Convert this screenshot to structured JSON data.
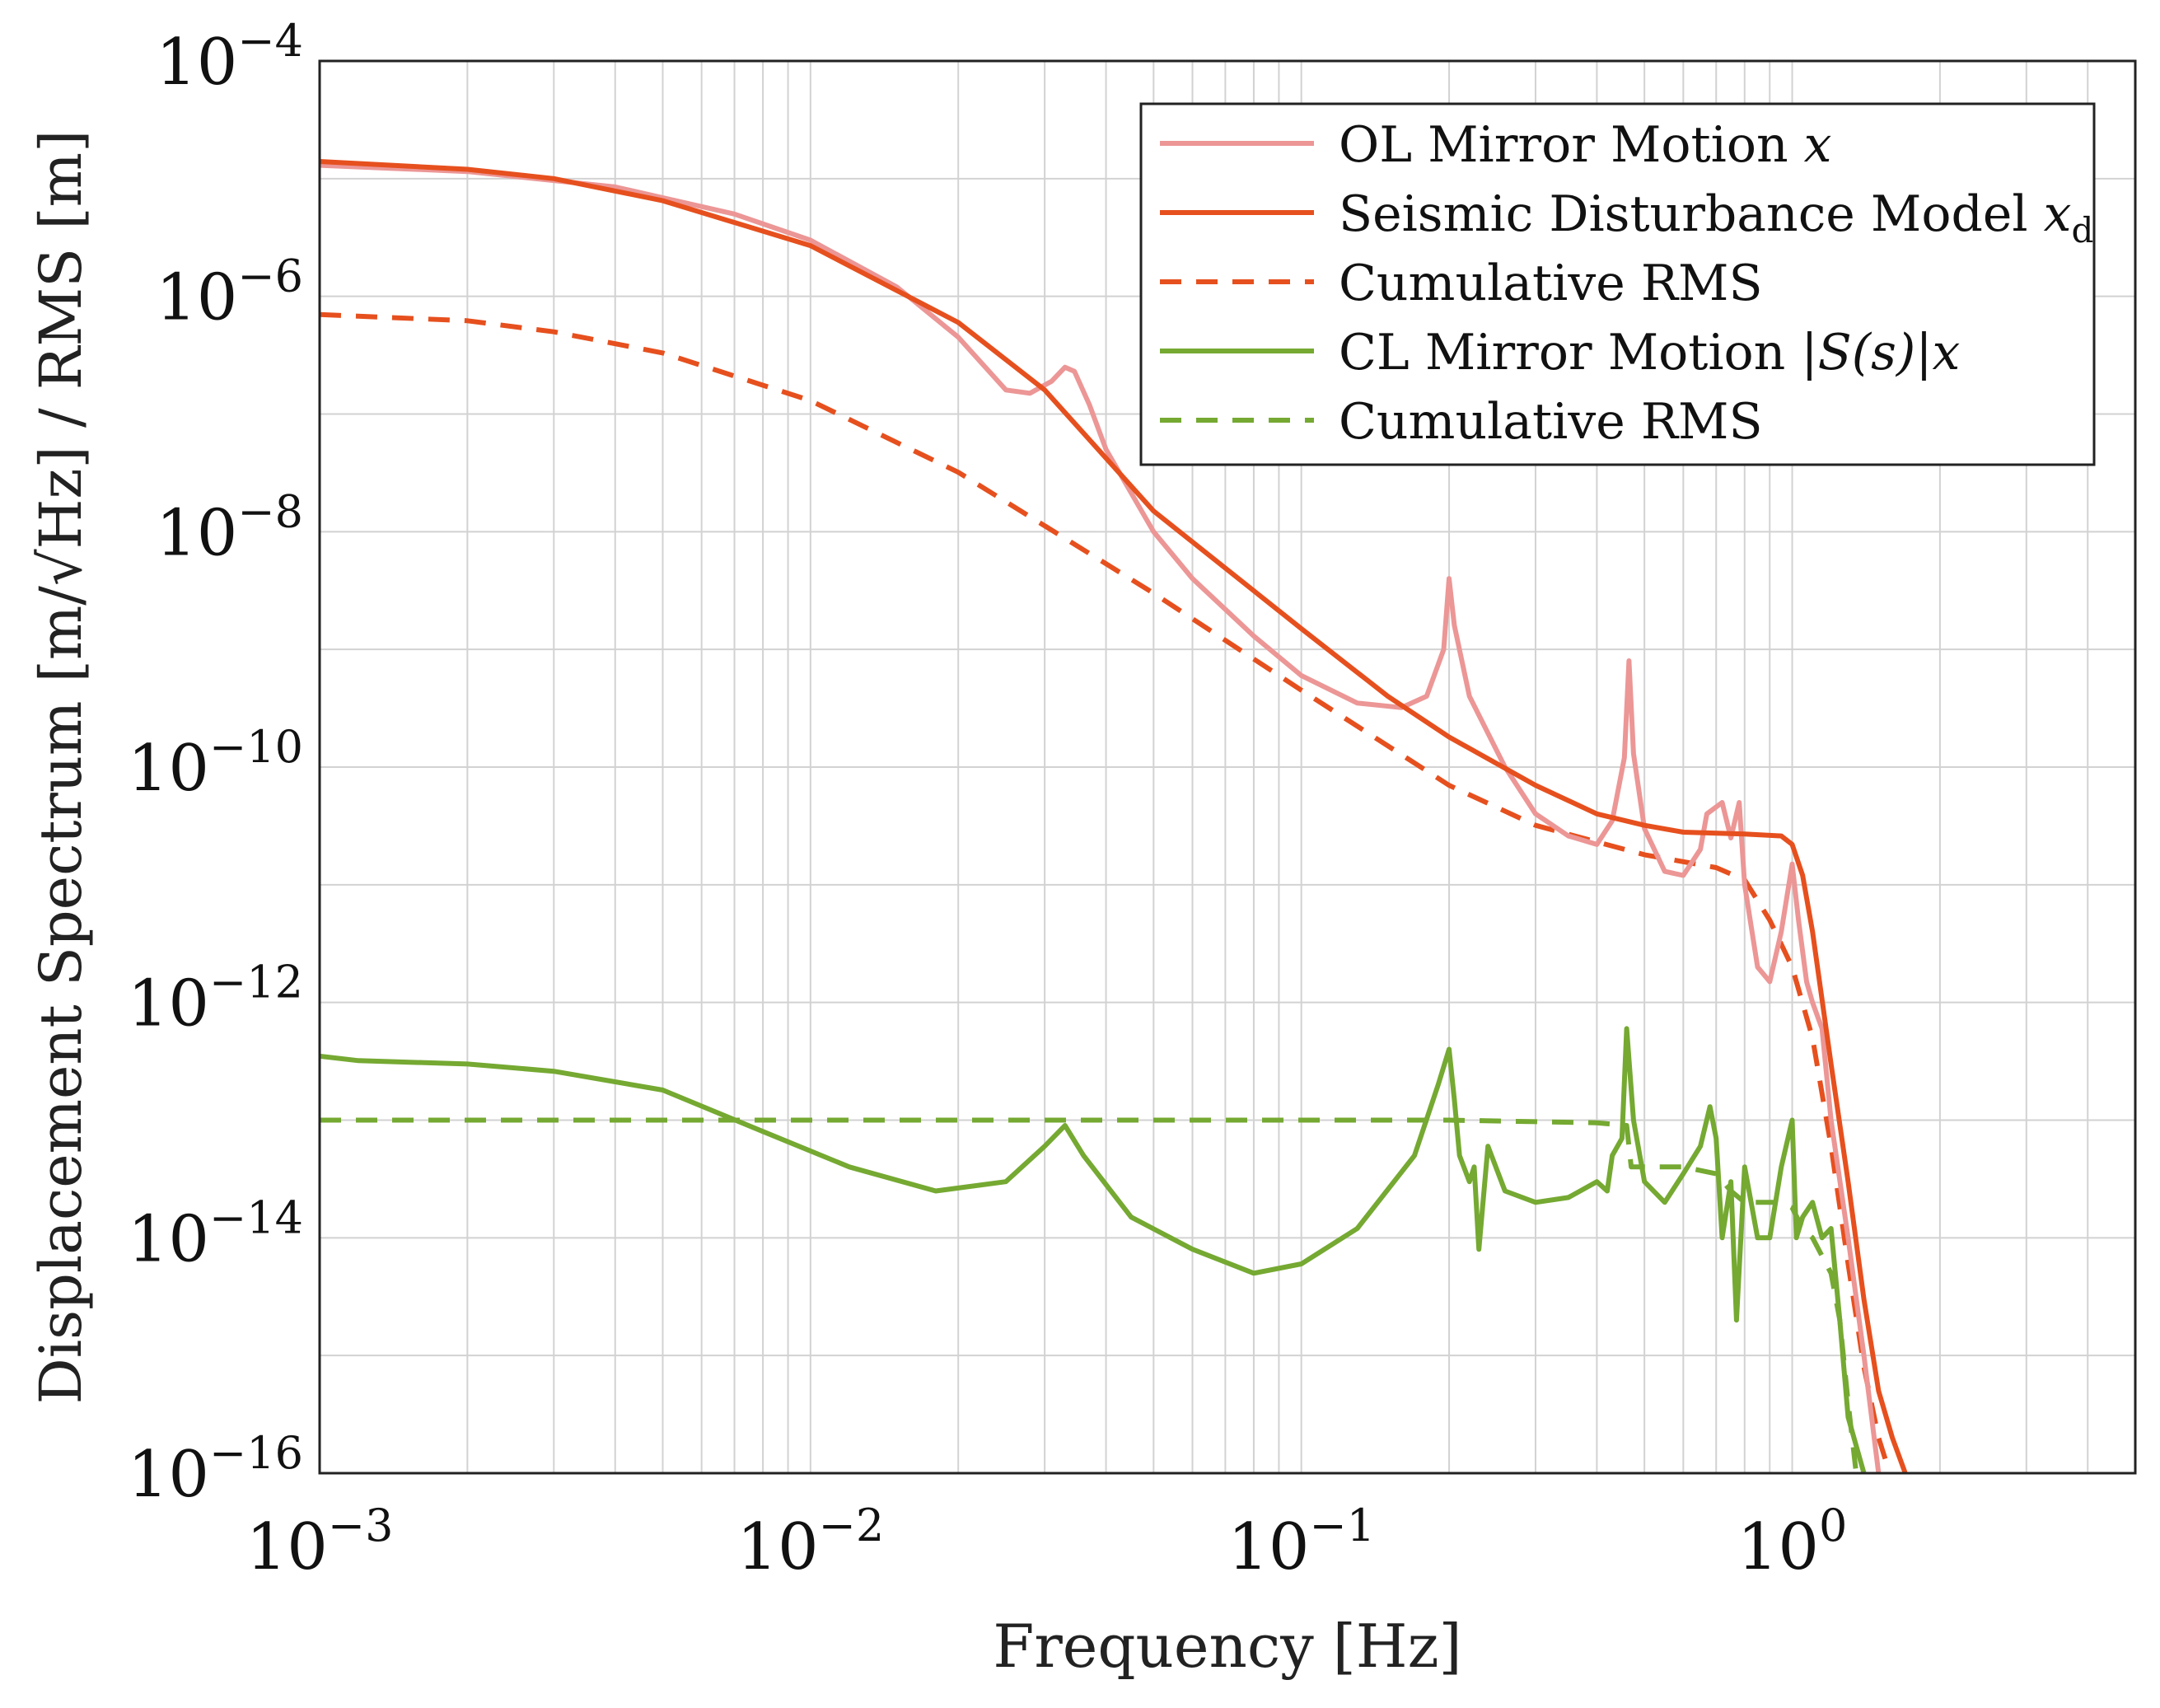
{
  "chart_data": {
    "type": "line",
    "xscale": "log",
    "yscale": "log",
    "xlim": [
      0.001,
      5
    ],
    "ylim": [
      1e-16,
      0.0001
    ],
    "xlabel": "Frequency [Hz]",
    "ylabel": "Displacement Spectrum [m/√Hz] / RMS [m]",
    "x_ticks": [
      {
        "value": 0.001,
        "base": "10",
        "exp": "−3"
      },
      {
        "value": 0.01,
        "base": "10",
        "exp": "−2"
      },
      {
        "value": 0.1,
        "base": "10",
        "exp": "−1"
      },
      {
        "value": 1,
        "base": "10",
        "exp": "0"
      }
    ],
    "y_ticks": [
      {
        "value": 0.0001,
        "base": "10",
        "exp": "−4"
      },
      {
        "value": 1e-06,
        "base": "10",
        "exp": "−6"
      },
      {
        "value": 1e-08,
        "base": "10",
        "exp": "−8"
      },
      {
        "value": 1e-10,
        "base": "10",
        "exp": "−10"
      },
      {
        "value": 1e-12,
        "base": "10",
        "exp": "−12"
      },
      {
        "value": 1e-14,
        "base": "10",
        "exp": "−14"
      },
      {
        "value": 1e-16,
        "base": "10",
        "exp": "−16"
      }
    ],
    "grid": true,
    "legend_position": "top-right",
    "series": [
      {
        "name": "OL Mirror Motion x",
        "legend_label": "OL Mirror Motion ",
        "legend_math": "x",
        "color": "#ec9696",
        "dash": "solid",
        "points": [
          [
            0.001,
            1.3e-05
          ],
          [
            0.002,
            1.15e-05
          ],
          [
            0.004,
            8.5e-06
          ],
          [
            0.007,
            5e-06
          ],
          [
            0.01,
            3e-06
          ],
          [
            0.015,
            1.2e-06
          ],
          [
            0.02,
            4.5e-07
          ],
          [
            0.025,
            1.6e-07
          ],
          [
            0.028,
            1.5e-07
          ],
          [
            0.031,
            1.9e-07
          ],
          [
            0.033,
            2.5e-07
          ],
          [
            0.0345,
            2.3e-07
          ],
          [
            0.037,
            1.2e-07
          ],
          [
            0.04,
            5e-08
          ],
          [
            0.05,
            1e-08
          ],
          [
            0.06,
            4e-09
          ],
          [
            0.08,
            1.3e-09
          ],
          [
            0.1,
            6e-10
          ],
          [
            0.13,
            3.5e-10
          ],
          [
            0.16,
            3.2e-10
          ],
          [
            0.18,
            4e-10
          ],
          [
            0.195,
            1e-09
          ],
          [
            0.2,
            4e-09
          ],
          [
            0.205,
            1.6e-09
          ],
          [
            0.22,
            4e-10
          ],
          [
            0.26,
            1e-10
          ],
          [
            0.3,
            4e-11
          ],
          [
            0.35,
            2.6e-11
          ],
          [
            0.4,
            2.2e-11
          ],
          [
            0.43,
            3.5e-11
          ],
          [
            0.455,
            1.2e-10
          ],
          [
            0.465,
            8e-10
          ],
          [
            0.475,
            1.3e-10
          ],
          [
            0.5,
            3e-11
          ],
          [
            0.55,
            1.3e-11
          ],
          [
            0.6,
            1.2e-11
          ],
          [
            0.65,
            2e-11
          ],
          [
            0.67,
            4e-11
          ],
          [
            0.72,
            5e-11
          ],
          [
            0.75,
            2.5e-11
          ],
          [
            0.78,
            5e-11
          ],
          [
            0.8,
            1e-11
          ],
          [
            0.85,
            2e-12
          ],
          [
            0.9,
            1.5e-12
          ],
          [
            0.95,
            4e-12
          ],
          [
            1.0,
            1.5e-11
          ],
          [
            1.03,
            5e-12
          ],
          [
            1.07,
            1.5e-12
          ],
          [
            1.1,
            1e-12
          ],
          [
            1.15,
            6e-13
          ],
          [
            1.2,
            1e-13
          ],
          [
            1.3,
            1e-14
          ],
          [
            1.4,
            1e-15
          ],
          [
            1.5,
            1e-16
          ]
        ]
      },
      {
        "name": "Seismic Disturbance Model x_d",
        "legend_label": "Seismic Disturbance Model ",
        "legend_math": "x",
        "legend_sub": "d",
        "color": "#e6501e",
        "dash": "solid",
        "points": [
          [
            0.001,
            1.4e-05
          ],
          [
            0.002,
            1.2e-05
          ],
          [
            0.003,
            1e-05
          ],
          [
            0.005,
            6.5e-06
          ],
          [
            0.01,
            2.7e-06
          ],
          [
            0.02,
            6e-07
          ],
          [
            0.03,
            1.6e-07
          ],
          [
            0.05,
            1.5e-08
          ],
          [
            0.1,
            1.5e-09
          ],
          [
            0.15,
            4e-10
          ],
          [
            0.2,
            1.8e-10
          ],
          [
            0.3,
            7e-11
          ],
          [
            0.4,
            4e-11
          ],
          [
            0.5,
            3.2e-11
          ],
          [
            0.6,
            2.8e-11
          ],
          [
            0.8,
            2.7e-11
          ],
          [
            0.95,
            2.6e-11
          ],
          [
            1.0,
            2.2e-11
          ],
          [
            1.05,
            1.2e-11
          ],
          [
            1.1,
            4e-12
          ],
          [
            1.2,
            3e-13
          ],
          [
            1.3,
            3e-14
          ],
          [
            1.4,
            3e-15
          ],
          [
            1.5,
            5e-16
          ],
          [
            1.6,
            2e-16
          ],
          [
            1.7,
            1e-16
          ]
        ]
      },
      {
        "name": "Cumulative RMS (Seismic)",
        "legend_label": "Cumulative RMS",
        "color": "#e6501e",
        "dash": "dashed",
        "points": [
          [
            0.001,
            7e-07
          ],
          [
            0.002,
            6.2e-07
          ],
          [
            0.003,
            5e-07
          ],
          [
            0.005,
            3.3e-07
          ],
          [
            0.01,
            1.3e-07
          ],
          [
            0.02,
            3.2e-08
          ],
          [
            0.05,
            3e-09
          ],
          [
            0.1,
            4.5e-10
          ],
          [
            0.2,
            7e-11
          ],
          [
            0.3,
            3.2e-11
          ],
          [
            0.5,
            1.8e-11
          ],
          [
            0.7,
            1.4e-11
          ],
          [
            0.8,
            1.1e-11
          ],
          [
            0.9,
            5e-12
          ],
          [
            1.0,
            2e-12
          ],
          [
            1.1,
            5e-13
          ],
          [
            1.2,
            6e-14
          ],
          [
            1.3,
            6e-15
          ],
          [
            1.4,
            8e-16
          ],
          [
            1.5,
            2e-16
          ],
          [
            1.58,
            1e-16
          ]
        ]
      },
      {
        "name": "CL Mirror Motion |S(s)|x",
        "legend_label": "CL Mirror Motion ",
        "legend_math": "|S(s)|x",
        "color": "#75a932",
        "dash": "solid",
        "points": [
          [
            0.001,
            3.5e-13
          ],
          [
            0.0012,
            3.2e-13
          ],
          [
            0.002,
            3e-13
          ],
          [
            0.003,
            2.6e-13
          ],
          [
            0.005,
            1.8e-13
          ],
          [
            0.008,
            8e-14
          ],
          [
            0.012,
            4e-14
          ],
          [
            0.018,
            2.5e-14
          ],
          [
            0.025,
            3e-14
          ],
          [
            0.03,
            6e-14
          ],
          [
            0.033,
            9e-14
          ],
          [
            0.036,
            5e-14
          ],
          [
            0.045,
            1.5e-14
          ],
          [
            0.06,
            8e-15
          ],
          [
            0.08,
            5e-15
          ],
          [
            0.1,
            6e-15
          ],
          [
            0.13,
            1.2e-14
          ],
          [
            0.17,
            5e-14
          ],
          [
            0.19,
            2e-13
          ],
          [
            0.2,
            4e-13
          ],
          [
            0.205,
            1.5e-13
          ],
          [
            0.21,
            5e-14
          ],
          [
            0.22,
            3e-14
          ],
          [
            0.225,
            4e-14
          ],
          [
            0.23,
            8e-15
          ],
          [
            0.24,
            6e-14
          ],
          [
            0.26,
            2.5e-14
          ],
          [
            0.3,
            2e-14
          ],
          [
            0.35,
            2.2e-14
          ],
          [
            0.4,
            3e-14
          ],
          [
            0.42,
            2.5e-14
          ],
          [
            0.43,
            5e-14
          ],
          [
            0.45,
            7e-14
          ],
          [
            0.46,
            6e-13
          ],
          [
            0.475,
            1e-13
          ],
          [
            0.5,
            3e-14
          ],
          [
            0.55,
            2e-14
          ],
          [
            0.6,
            3.5e-14
          ],
          [
            0.65,
            6e-14
          ],
          [
            0.68,
            1.3e-13
          ],
          [
            0.7,
            7e-14
          ],
          [
            0.72,
            1e-14
          ],
          [
            0.75,
            3e-14
          ],
          [
            0.77,
            2e-15
          ],
          [
            0.8,
            4e-14
          ],
          [
            0.85,
            1e-14
          ],
          [
            0.9,
            1e-14
          ],
          [
            0.95,
            4e-14
          ],
          [
            1.0,
            1e-13
          ],
          [
            1.02,
            1e-14
          ],
          [
            1.05,
            1.5e-14
          ],
          [
            1.1,
            2e-14
          ],
          [
            1.15,
            1e-14
          ],
          [
            1.2,
            1.2e-14
          ],
          [
            1.25,
            2e-15
          ],
          [
            1.3,
            3e-16
          ],
          [
            1.4,
            1e-16
          ]
        ]
      },
      {
        "name": "Cumulative RMS (CL)",
        "legend_label": "Cumulative RMS",
        "color": "#75a932",
        "dash": "dashed",
        "points": [
          [
            0.001,
            1e-13
          ],
          [
            0.1,
            1e-13
          ],
          [
            0.2,
            1e-13
          ],
          [
            0.4,
            9.5e-14
          ],
          [
            0.46,
            9e-14
          ],
          [
            0.47,
            4e-14
          ],
          [
            0.6,
            4e-14
          ],
          [
            0.7,
            3.5e-14
          ],
          [
            0.75,
            2.5e-14
          ],
          [
            0.8,
            2e-14
          ],
          [
            0.95,
            2e-14
          ],
          [
            1.0,
            1.8e-14
          ],
          [
            1.05,
            1.2e-14
          ],
          [
            1.1,
            1e-14
          ],
          [
            1.2,
            5e-15
          ],
          [
            1.25,
            2e-15
          ],
          [
            1.3,
            4e-16
          ],
          [
            1.35,
            1e-16
          ]
        ]
      }
    ]
  }
}
